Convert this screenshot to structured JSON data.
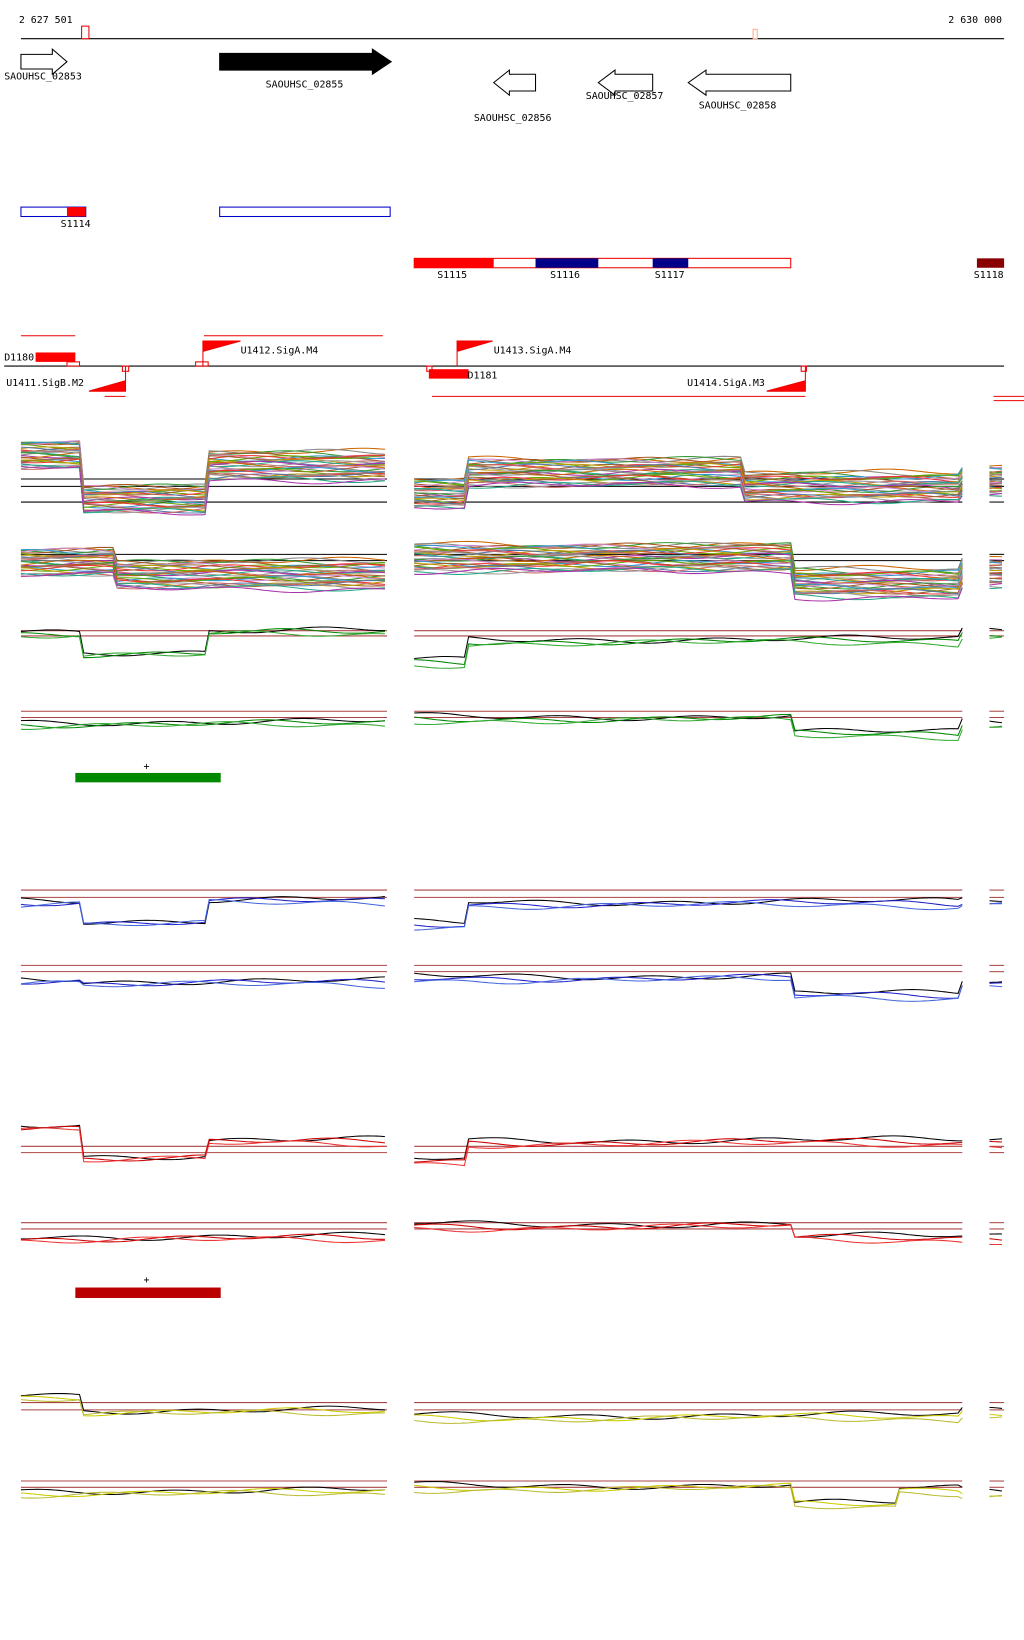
{
  "ruler": {
    "start": "2 627 501",
    "end": "2 630 000"
  },
  "genes": [
    "SAOUHSC_02853",
    "SAOUHSC_02855",
    "SAOUHSC_02856",
    "SAOUHSC_02857",
    "SAOUHSC_02858"
  ],
  "segments": [
    "S1114",
    "S1115",
    "S1116",
    "S1117",
    "S1118"
  ],
  "promoters": [
    "D1180",
    "U1411.SigB.M2",
    "U1412.SigA.M4",
    "U1413.SigA.M4",
    "D1181",
    "U1414.SigA.M3"
  ],
  "markers": [
    "+",
    "+"
  ]
}
